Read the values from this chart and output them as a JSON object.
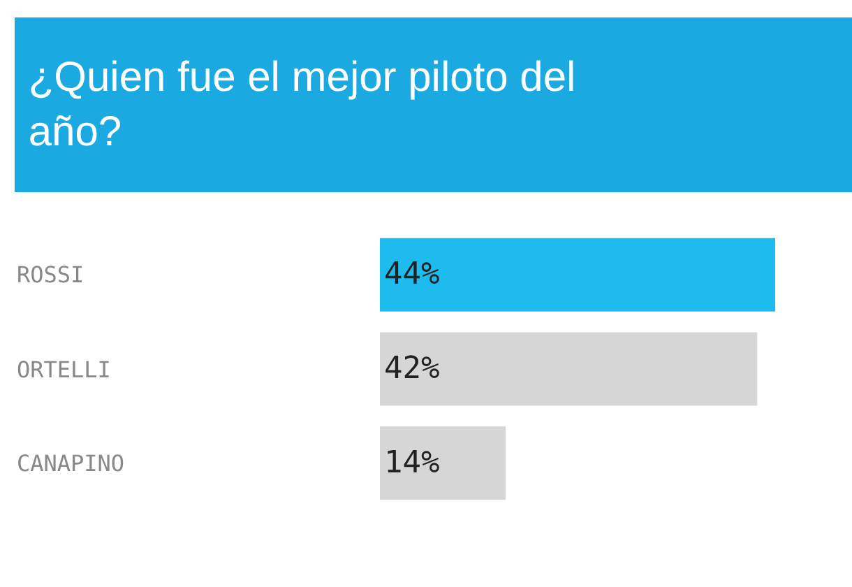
{
  "chart_data": {
    "type": "bar",
    "orientation": "horizontal",
    "title": "¿Quien fue el mejor piloto del año?",
    "categories": [
      "ROSSI",
      "ORTELLI",
      "CANAPINO"
    ],
    "values": [
      44,
      42,
      14
    ],
    "value_labels": [
      "44%",
      "42%",
      "14%"
    ],
    "colors": [
      "#1ebcee",
      "#d6d6d6",
      "#d6d6d6"
    ],
    "legend": false
  }
}
